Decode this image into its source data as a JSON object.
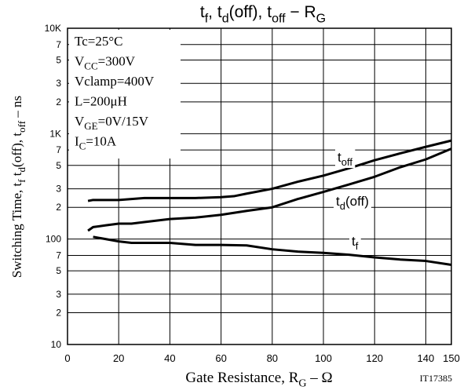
{
  "chart_data": {
    "type": "line",
    "title": [
      "t",
      "f",
      ", t",
      "d",
      "(off), t",
      "off",
      " − R",
      "G"
    ],
    "x_label": [
      "Gate Resistance, R",
      "G",
      "  –  Ω"
    ],
    "y_label": [
      "Switching Time, t",
      "f",
      " t",
      "d",
      "(off),  t",
      "off",
      "  –  ns"
    ],
    "footnote": "IT17385",
    "conditions": [
      [
        "Tc=25°C"
      ],
      [
        "V",
        "CC",
        "=300V"
      ],
      [
        "Vclamp=400V"
      ],
      [
        "L=200μH"
      ],
      [
        "V",
        "GE",
        "=0V/15V"
      ],
      [
        "I",
        "C",
        "=10A"
      ]
    ],
    "log_y": true,
    "grid": true,
    "color": "#000000",
    "xlim": [
      0,
      150
    ],
    "ylim": [
      10,
      10000
    ],
    "xticks": [
      0,
      20,
      40,
      60,
      80,
      100,
      120,
      140,
      150
    ],
    "yticks": [
      10,
      {
        "value": 20,
        "label": "2"
      },
      {
        "value": 30,
        "label": "3"
      },
      {
        "value": 50,
        "label": "5"
      },
      {
        "value": 70,
        "label": "7"
      },
      100,
      {
        "value": 200,
        "label": "2"
      },
      {
        "value": 300,
        "label": "3"
      },
      {
        "value": 500,
        "label": "5"
      },
      {
        "value": 700,
        "label": "7"
      },
      {
        "value": 1000,
        "label": "1K"
      },
      {
        "value": 2000,
        "label": "2"
      },
      {
        "value": 3000,
        "label": "3"
      },
      {
        "value": 5000,
        "label": "5"
      },
      {
        "value": 7000,
        "label": "7"
      },
      {
        "value": 10000,
        "label": "10K"
      }
    ],
    "series": [
      {
        "label": [
          "t",
          "off"
        ],
        "x": [
          8,
          10,
          20,
          25,
          30,
          50,
          60,
          65,
          70,
          80,
          90,
          100,
          110,
          120,
          130,
          140,
          150
        ],
        "values": [
          230,
          235,
          235,
          240,
          245,
          245,
          250,
          255,
          270,
          300,
          350,
          400,
          470,
          560,
          650,
          750,
          860
        ]
      },
      {
        "label": [
          "t",
          "d",
          "(off)"
        ],
        "x": [
          8,
          10,
          15,
          20,
          25,
          30,
          40,
          50,
          60,
          70,
          80,
          90,
          100,
          110,
          120,
          130,
          140,
          150
        ],
        "values": [
          120,
          130,
          135,
          140,
          140,
          145,
          155,
          160,
          170,
          185,
          200,
          240,
          280,
          330,
          390,
          480,
          570,
          720
        ]
      },
      {
        "label": [
          "t",
          "f"
        ],
        "x": [
          10,
          20,
          25,
          40,
          50,
          60,
          70,
          80,
          90,
          100,
          110,
          120,
          130,
          140,
          150
        ],
        "values": [
          105,
          95,
          92,
          92,
          88,
          88,
          87,
          80,
          76,
          74,
          71,
          67,
          64,
          62,
          57
        ]
      }
    ]
  }
}
